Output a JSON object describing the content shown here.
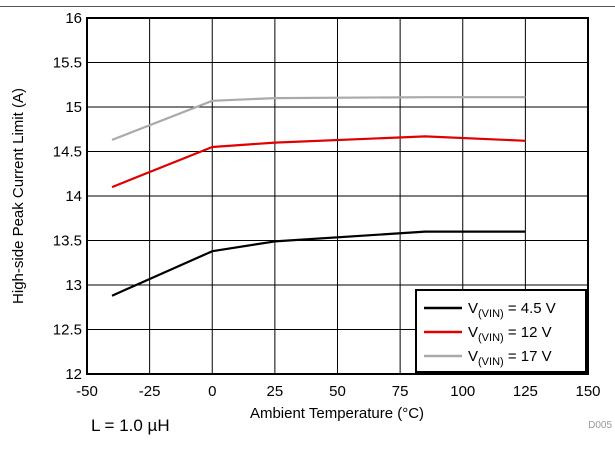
{
  "chart_data": {
    "type": "line",
    "title": "",
    "xlabel": "Ambient Temperature (°C)",
    "ylabel": "High-side Peak Current Limit (A)",
    "xlim": [
      -50,
      150
    ],
    "ylim": [
      12,
      16
    ],
    "xticks": [
      -50,
      -25,
      0,
      25,
      50,
      75,
      100,
      125,
      150
    ],
    "yticks": [
      12,
      12.5,
      13,
      13.5,
      14,
      14.5,
      15,
      15.5,
      16
    ],
    "xtick_labels": [
      "-50",
      "-25",
      "0",
      "25",
      "50",
      "75",
      "100",
      "125",
      "150"
    ],
    "ytick_labels": [
      "12",
      "12.5",
      "13",
      "13.5",
      "14",
      "14.5",
      "15",
      "15.5",
      "16"
    ],
    "grid": true,
    "legend_position": "bottom-right",
    "series": [
      {
        "name": "V(VIN) = 4.5 V",
        "legend_main": "V",
        "legend_sub": "(VIN)",
        "legend_rest": " = 4.5 V",
        "color": "#000000",
        "x": [
          -40,
          0,
          25,
          85,
          125
        ],
        "y": [
          12.88,
          13.38,
          13.49,
          13.6,
          13.6
        ]
      },
      {
        "name": "V(VIN) = 12 V",
        "legend_main": "V",
        "legend_sub": "(VIN)",
        "legend_rest": " = 12 V",
        "color": "#e00000",
        "x": [
          -40,
          0,
          25,
          85,
          125
        ],
        "y": [
          14.1,
          14.55,
          14.6,
          14.67,
          14.62
        ]
      },
      {
        "name": "V(VIN) = 17 V",
        "legend_main": "V",
        "legend_sub": "(VIN)",
        "legend_rest": " = 17 V",
        "color": "#aaaaaa",
        "x": [
          -40,
          0,
          25,
          85,
          125
        ],
        "y": [
          14.63,
          15.07,
          15.1,
          15.11,
          15.11
        ]
      }
    ]
  },
  "figure_code": "D005",
  "footnote": "L = 1.0 µH"
}
